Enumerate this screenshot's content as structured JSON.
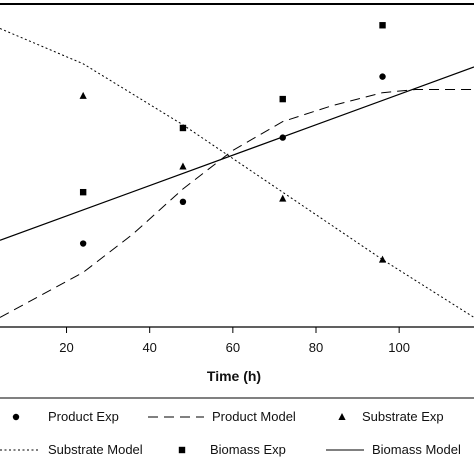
{
  "chart_data": {
    "type": "scatter",
    "title": "",
    "xlabel": "Time (h)",
    "ylabel": "",
    "xlim": [
      4,
      118
    ],
    "ylim": [
      0,
      1
    ],
    "x_ticks": [
      20,
      40,
      60,
      80,
      100
    ],
    "grid": false,
    "legend_position": "bottom",
    "series": [
      {
        "name": "Product Exp",
        "kind": "points",
        "marker": "circle",
        "x": [
          24,
          48,
          72,
          96
        ],
        "y": [
          0.26,
          0.39,
          0.59,
          0.78
        ]
      },
      {
        "name": "Product Model",
        "kind": "line",
        "dash": "long-dash",
        "x": [
          4,
          24,
          36,
          48,
          60,
          72,
          84,
          96,
          104,
          118
        ],
        "y": [
          0.03,
          0.17,
          0.29,
          0.43,
          0.55,
          0.64,
          0.69,
          0.73,
          0.74,
          0.74
        ]
      },
      {
        "name": "Substrate Exp",
        "kind": "triangle-points",
        "marker": "triangle",
        "x": [
          24,
          48,
          72,
          96
        ],
        "y": [
          0.72,
          0.5,
          0.4,
          0.21
        ]
      },
      {
        "name": "Substrate Model",
        "kind": "line",
        "dash": "dotted",
        "x": [
          4,
          24,
          48,
          72,
          96,
          118
        ],
        "y": [
          0.93,
          0.82,
          0.63,
          0.42,
          0.21,
          0.03
        ]
      },
      {
        "name": "Biomass Exp",
        "kind": "square-points",
        "marker": "square",
        "x": [
          24,
          48,
          72,
          96
        ],
        "y": [
          0.42,
          0.62,
          0.71,
          0.94
        ]
      },
      {
        "name": "Biomass Model",
        "kind": "line",
        "dash": "solid",
        "x": [
          4,
          118
        ],
        "y": [
          0.27,
          0.81
        ]
      }
    ]
  },
  "colors": {
    "ink": "#000000",
    "background": "#ffffff"
  }
}
